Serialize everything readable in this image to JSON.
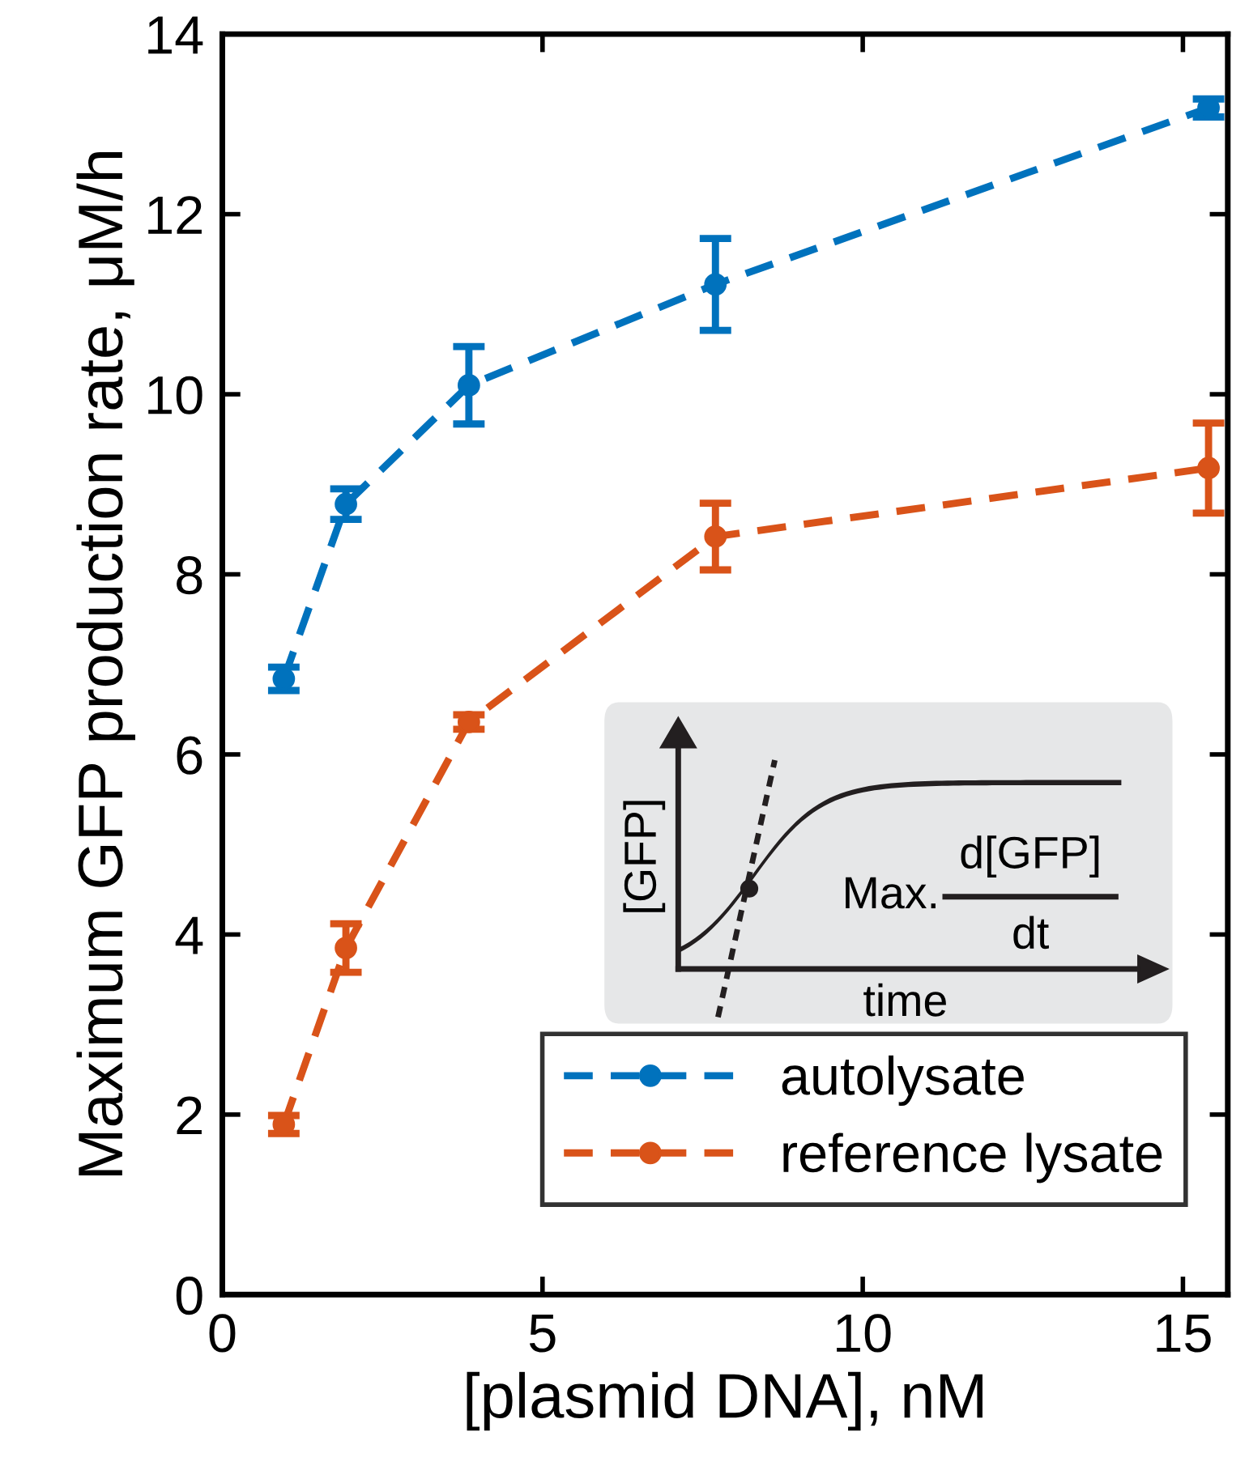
{
  "chart_data": {
    "type": "line",
    "xlabel": "[plasmid DNA], nM",
    "ylabel": "Maximum GFP production rate, μM/h",
    "x": [
      0.96,
      1.93,
      3.85,
      7.7,
      15.4
    ],
    "series": [
      {
        "name": "autolysate",
        "color": "#0072bd",
        "values": [
          6.84,
          8.78,
          10.1,
          11.22,
          13.18
        ],
        "errors": [
          0.13,
          0.17,
          0.43,
          0.51,
          0.1
        ]
      },
      {
        "name": "reference lysate",
        "color": "#d95319",
        "values": [
          1.89,
          3.85,
          6.36,
          8.42,
          9.18
        ],
        "errors": [
          0.1,
          0.27,
          0.08,
          0.37,
          0.5
        ]
      }
    ],
    "xlim": [
      0,
      15.7
    ],
    "xticks": [
      0,
      5,
      10,
      15
    ],
    "ylim": [
      0,
      14
    ],
    "yticks": [
      0,
      2,
      4,
      6,
      8,
      10,
      12,
      14
    ],
    "grid": false,
    "legend": "bottom right",
    "marker": "circle",
    "line_style": "dashed",
    "annotations": [
      "[GFP]",
      "time",
      "Max.",
      "d[GFP]",
      "dt"
    ]
  }
}
